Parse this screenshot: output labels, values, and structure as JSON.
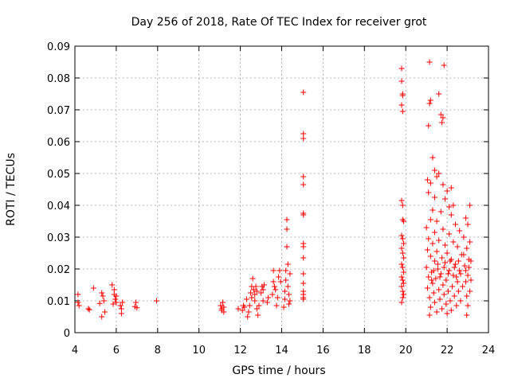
{
  "chart_data": {
    "type": "scatter",
    "title": "Day 256 of 2018, Rate Of TEC Index for receiver grot",
    "xlabel": "GPS time / hours",
    "ylabel": "ROTI / TECUs",
    "xlim": [
      4,
      24
    ],
    "ylim": [
      0,
      0.09
    ],
    "xticks": [
      "4",
      "6",
      "8",
      "10",
      "12",
      "14",
      "16",
      "18",
      "20",
      "22",
      "24"
    ],
    "yticks": [
      "0",
      "0.01",
      "0.02",
      "0.03",
      "0.04",
      "0.05",
      "0.06",
      "0.07",
      "0.08",
      "0.09"
    ],
    "grid": true,
    "marker": "plus",
    "color": "#ff0000",
    "series": [
      {
        "points": [
          [
            4.15,
            0.012
          ],
          [
            4.15,
            0.0095
          ],
          [
            4.2,
            0.0085
          ],
          [
            4.65,
            0.0075
          ],
          [
            4.7,
            0.0072
          ],
          [
            4.9,
            0.014
          ],
          [
            5.2,
            0.0092
          ],
          [
            5.3,
            0.0125
          ],
          [
            5.3,
            0.005
          ],
          [
            5.35,
            0.0115
          ],
          [
            5.4,
            0.01
          ],
          [
            5.45,
            0.0065
          ],
          [
            5.8,
            0.015
          ],
          [
            5.85,
            0.009
          ],
          [
            5.9,
            0.012
          ],
          [
            5.9,
            0.0135
          ],
          [
            5.95,
            0.0105
          ],
          [
            6.0,
            0.0095
          ],
          [
            6.0,
            0.0115
          ],
          [
            6.2,
            0.0085
          ],
          [
            6.25,
            0.006
          ],
          [
            6.25,
            0.0075
          ],
          [
            6.3,
            0.0095
          ],
          [
            6.9,
            0.0082
          ],
          [
            6.95,
            0.0095
          ],
          [
            7.0,
            0.0078
          ],
          [
            7.95,
            0.01
          ],
          [
            11.05,
            0.0085
          ],
          [
            11.1,
            0.0075
          ],
          [
            11.1,
            0.007
          ],
          [
            11.15,
            0.0095
          ],
          [
            11.2,
            0.008
          ],
          [
            11.2,
            0.0065
          ],
          [
            11.9,
            0.0075
          ],
          [
            12.1,
            0.007
          ],
          [
            12.15,
            0.0085
          ],
          [
            12.2,
            0.008
          ],
          [
            12.3,
            0.0105
          ],
          [
            12.35,
            0.005
          ],
          [
            12.4,
            0.0065
          ],
          [
            12.45,
            0.0085
          ],
          [
            12.5,
            0.0125
          ],
          [
            12.55,
            0.0145
          ],
          [
            12.55,
            0.011
          ],
          [
            12.6,
            0.017
          ],
          [
            12.65,
            0.0135
          ],
          [
            12.7,
            0.012
          ],
          [
            12.7,
            0.01
          ],
          [
            12.75,
            0.0145
          ],
          [
            12.8,
            0.013
          ],
          [
            12.8,
            0.0075
          ],
          [
            12.85,
            0.0055
          ],
          [
            12.9,
            0.0085
          ],
          [
            13.0,
            0.0125
          ],
          [
            13.05,
            0.0145
          ],
          [
            13.1,
            0.01
          ],
          [
            13.1,
            0.0135
          ],
          [
            13.15,
            0.015
          ],
          [
            13.3,
            0.0095
          ],
          [
            13.35,
            0.011
          ],
          [
            13.55,
            0.012
          ],
          [
            13.6,
            0.016
          ],
          [
            13.6,
            0.0195
          ],
          [
            13.65,
            0.0145
          ],
          [
            13.7,
            0.0135
          ],
          [
            13.75,
            0.0085
          ],
          [
            13.8,
            0.011
          ],
          [
            13.85,
            0.0175
          ],
          [
            13.9,
            0.0195
          ],
          [
            13.95,
            0.016
          ],
          [
            14.1,
            0.008
          ],
          [
            14.15,
            0.0105
          ],
          [
            14.15,
            0.013
          ],
          [
            14.2,
            0.0165
          ],
          [
            14.2,
            0.0195
          ],
          [
            14.25,
            0.0355
          ],
          [
            14.25,
            0.0325
          ],
          [
            14.25,
            0.027
          ],
          [
            14.3,
            0.0215
          ],
          [
            14.3,
            0.0145
          ],
          [
            14.35,
            0.012
          ],
          [
            14.35,
            0.009
          ],
          [
            14.4,
            0.0185
          ],
          [
            14.4,
            0.01
          ],
          [
            15.05,
            0.0755
          ],
          [
            15.05,
            0.0625
          ],
          [
            15.05,
            0.061
          ],
          [
            15.05,
            0.049
          ],
          [
            15.05,
            0.0465
          ],
          [
            15.05,
            0.0375
          ],
          [
            15.05,
            0.037
          ],
          [
            15.05,
            0.028
          ],
          [
            15.05,
            0.027
          ],
          [
            15.05,
            0.0235
          ],
          [
            15.05,
            0.0185
          ],
          [
            15.05,
            0.0155
          ],
          [
            15.05,
            0.013
          ],
          [
            15.05,
            0.012
          ],
          [
            15.05,
            0.011
          ],
          [
            15.05,
            0.0105
          ],
          [
            19.8,
            0.083
          ],
          [
            19.8,
            0.079
          ],
          [
            19.85,
            0.075
          ],
          [
            19.85,
            0.0745
          ],
          [
            19.8,
            0.0715
          ],
          [
            19.85,
            0.0695
          ],
          [
            19.8,
            0.0415
          ],
          [
            19.85,
            0.04
          ],
          [
            19.85,
            0.0355
          ],
          [
            19.9,
            0.035
          ],
          [
            19.8,
            0.0305
          ],
          [
            19.85,
            0.0295
          ],
          [
            19.9,
            0.028
          ],
          [
            19.8,
            0.0265
          ],
          [
            19.85,
            0.025
          ],
          [
            19.9,
            0.0235
          ],
          [
            19.8,
            0.0215
          ],
          [
            19.85,
            0.0205
          ],
          [
            19.9,
            0.019
          ],
          [
            19.8,
            0.0175
          ],
          [
            19.85,
            0.0165
          ],
          [
            19.9,
            0.0155
          ],
          [
            19.8,
            0.0145
          ],
          [
            19.85,
            0.013
          ],
          [
            19.9,
            0.012
          ],
          [
            19.85,
            0.011
          ],
          [
            19.8,
            0.0095
          ],
          [
            21.15,
            0.085
          ],
          [
            21.2,
            0.073
          ],
          [
            21.15,
            0.072
          ],
          [
            21.1,
            0.065
          ],
          [
            21.6,
            0.075
          ],
          [
            21.7,
            0.0685
          ],
          [
            21.8,
            0.0675
          ],
          [
            21.75,
            0.066
          ],
          [
            21.85,
            0.084
          ],
          [
            21.3,
            0.055
          ],
          [
            21.4,
            0.051
          ],
          [
            21.5,
            0.049
          ],
          [
            21.05,
            0.048
          ],
          [
            21.2,
            0.047
          ],
          [
            21.6,
            0.05
          ],
          [
            21.8,
            0.0465
          ],
          [
            22.2,
            0.0455
          ],
          [
            22.0,
            0.0445
          ],
          [
            21.1,
            0.044
          ],
          [
            21.4,
            0.0425
          ],
          [
            21.9,
            0.042
          ],
          [
            22.1,
            0.0395
          ],
          [
            22.3,
            0.04
          ],
          [
            23.1,
            0.04
          ],
          [
            21.3,
            0.0385
          ],
          [
            21.7,
            0.038
          ],
          [
            22.2,
            0.037
          ],
          [
            22.9,
            0.036
          ],
          [
            21.2,
            0.0355
          ],
          [
            21.5,
            0.035
          ],
          [
            22.4,
            0.034
          ],
          [
            23.0,
            0.034
          ],
          [
            21.0,
            0.033
          ],
          [
            21.8,
            0.0325
          ],
          [
            22.6,
            0.032
          ],
          [
            21.4,
            0.0315
          ],
          [
            22.1,
            0.031
          ],
          [
            22.8,
            0.03
          ],
          [
            21.1,
            0.0295
          ],
          [
            21.6,
            0.029
          ],
          [
            22.3,
            0.0285
          ],
          [
            23.1,
            0.0285
          ],
          [
            21.3,
            0.028
          ],
          [
            21.9,
            0.0275
          ],
          [
            22.5,
            0.027
          ],
          [
            22.95,
            0.0265
          ],
          [
            21.05,
            0.026
          ],
          [
            21.5,
            0.0255
          ],
          [
            22.0,
            0.025
          ],
          [
            22.7,
            0.0245
          ],
          [
            21.2,
            0.024
          ],
          [
            21.75,
            0.0235
          ],
          [
            22.2,
            0.023
          ],
          [
            23.05,
            0.023
          ],
          [
            21.4,
            0.0225
          ],
          [
            21.9,
            0.022
          ],
          [
            22.4,
            0.0215
          ],
          [
            22.85,
            0.021
          ],
          [
            21.0,
            0.0205
          ],
          [
            21.55,
            0.02
          ],
          [
            22.1,
            0.0195
          ],
          [
            22.6,
            0.0195
          ],
          [
            21.25,
            0.019
          ],
          [
            21.7,
            0.0185
          ],
          [
            22.3,
            0.018
          ],
          [
            23.0,
            0.018
          ],
          [
            21.1,
            0.0175
          ],
          [
            21.45,
            0.017
          ],
          [
            21.95,
            0.0165
          ],
          [
            22.5,
            0.016
          ],
          [
            22.9,
            0.016
          ],
          [
            21.3,
            0.0155
          ],
          [
            21.8,
            0.015
          ],
          [
            22.25,
            0.0145
          ],
          [
            22.75,
            0.0145
          ],
          [
            21.05,
            0.014
          ],
          [
            21.6,
            0.0135
          ],
          [
            22.05,
            0.013
          ],
          [
            22.55,
            0.013
          ],
          [
            23.1,
            0.013
          ],
          [
            21.35,
            0.0125
          ],
          [
            21.85,
            0.012
          ],
          [
            22.35,
            0.0115
          ],
          [
            22.95,
            0.0115
          ],
          [
            21.15,
            0.011
          ],
          [
            21.65,
            0.0105
          ],
          [
            22.15,
            0.01
          ],
          [
            22.65,
            0.01
          ],
          [
            21.4,
            0.0095
          ],
          [
            21.95,
            0.009
          ],
          [
            22.45,
            0.0085
          ],
          [
            23.0,
            0.0085
          ],
          [
            21.2,
            0.008
          ],
          [
            21.75,
            0.0075
          ],
          [
            22.2,
            0.007
          ],
          [
            21.5,
            0.0065
          ],
          [
            22.0,
            0.006
          ],
          [
            21.15,
            0.0055
          ],
          [
            22.95,
            0.0055
          ],
          [
            21.35,
            0.0195
          ],
          [
            21.25,
            0.0165
          ],
          [
            21.55,
            0.0215
          ],
          [
            21.65,
            0.0175
          ],
          [
            21.85,
            0.0205
          ],
          [
            22.05,
            0.0185
          ],
          [
            22.15,
            0.0225
          ],
          [
            22.35,
            0.0205
          ],
          [
            22.45,
            0.0175
          ],
          [
            22.55,
            0.0225
          ],
          [
            22.65,
            0.0185
          ],
          [
            22.8,
            0.0245
          ],
          [
            22.9,
            0.0195
          ],
          [
            23.05,
            0.0205
          ],
          [
            23.15,
            0.0165
          ],
          [
            23.15,
            0.0225
          ]
        ]
      }
    ]
  }
}
